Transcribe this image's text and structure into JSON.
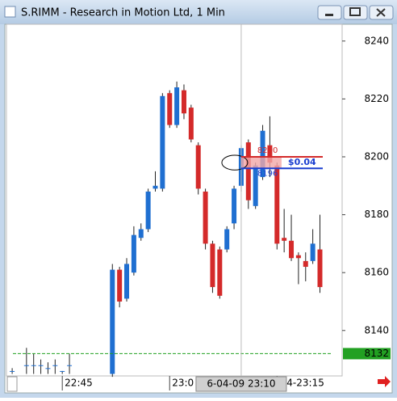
{
  "window": {
    "title": "S.RIMM - Research in Motion Ltd, 1 Min"
  },
  "chart_data": {
    "type": "candlestick",
    "up_color": "#1f6fd1",
    "down_color": "#d42a2a",
    "x": [
      8,
      10,
      11,
      12,
      13,
      14,
      15,
      16,
      22,
      23,
      24,
      25,
      26,
      27,
      28,
      29,
      30,
      31,
      32,
      33,
      34,
      35,
      36,
      37,
      38,
      39,
      40,
      41,
      42,
      43,
      44,
      45,
      46,
      47,
      48,
      49,
      50,
      51
    ],
    "open": [
      8126,
      8128,
      8128,
      8128,
      8127,
      8128,
      8126,
      8128,
      8125,
      8161,
      8151,
      8160,
      8172,
      8175,
      8189,
      8189,
      8222,
      8211,
      8223,
      8217,
      8204,
      8188,
      8170,
      8168,
      8168,
      8177,
      8190,
      8205,
      8183,
      8193,
      8204,
      8197,
      8172,
      8171,
      8166,
      8164,
      8164,
      8168
    ],
    "high": [
      8127,
      8134,
      8132,
      8130,
      8129,
      8130,
      8126,
      8132,
      8163,
      8162,
      8165,
      8176,
      8177,
      8189,
      8195,
      8222,
      8223,
      8226,
      8225,
      8218,
      8205,
      8189,
      8171,
      8169,
      8176,
      8190,
      8204,
      8206,
      8198,
      8211,
      8214,
      8198,
      8182,
      8180,
      8167,
      8167,
      8175,
      8180
    ],
    "low": [
      8125,
      8125,
      8125,
      8125,
      8125,
      8125,
      8125,
      8125,
      8124,
      8148,
      8150,
      8159,
      8171,
      8174,
      8188,
      8188,
      8210,
      8210,
      8213,
      8205,
      8187,
      8168,
      8153,
      8151,
      8167,
      8175,
      8188,
      8182,
      8182,
      8192,
      8193,
      8168,
      8167,
      8164,
      8156,
      8157,
      8163,
      8153
    ],
    "close": [
      8126,
      8128,
      8128,
      8128,
      8127,
      8128,
      8126,
      8128,
      8161,
      8150,
      8163,
      8173,
      8175,
      8188,
      8190,
      8221,
      8211,
      8224,
      8215,
      8206,
      8189,
      8170,
      8155,
      8152,
      8175,
      8189,
      8203,
      8185,
      8197,
      8209,
      8198,
      8170,
      8171,
      8165,
      8165,
      8162,
      8170,
      8155
    ],
    "xlim": [
      7.2,
      54.1
    ],
    "xticks": [
      {
        "value": 15,
        "label": "22:45"
      },
      {
        "value": 30,
        "label": "23:0"
      },
      {
        "value": 45,
        "label": "4-23:15"
      }
    ],
    "ylim": [
      8124.3,
      8245.8
    ],
    "yticks": [
      8140,
      8160,
      8180,
      8200,
      8220,
      8240
    ],
    "reference_line": {
      "value": 8132,
      "color": "#22a022"
    },
    "crosshair": {
      "x": 40,
      "label": "6-04-09 23:10"
    },
    "order": {
      "high": 8200,
      "low": 8196,
      "spread": "$0.04"
    }
  }
}
